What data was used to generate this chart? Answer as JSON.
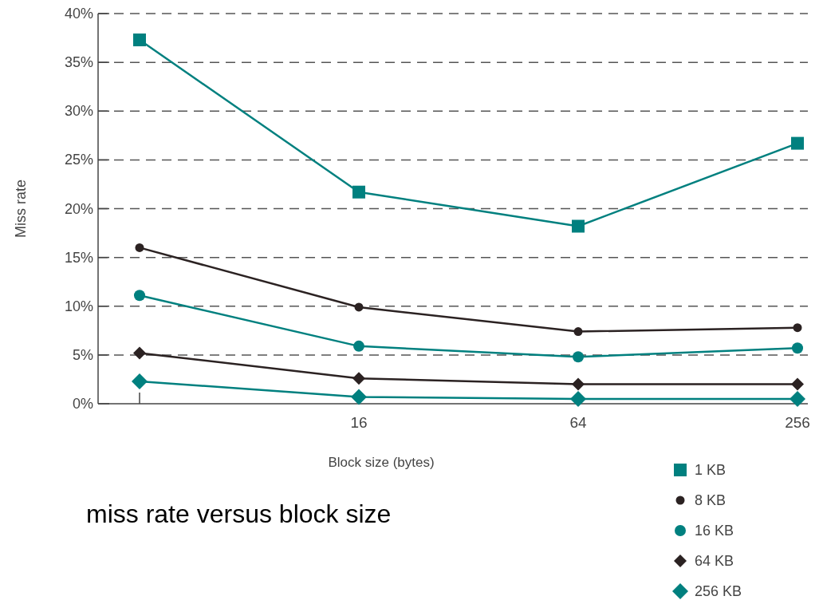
{
  "chart_data": {
    "type": "line",
    "title": "miss rate versus block size",
    "xlabel": "Block size (bytes)",
    "ylabel": "Miss rate",
    "categories": [
      null,
      "16",
      "64",
      "256"
    ],
    "series": [
      {
        "name": "1 KB",
        "color": "#00807f",
        "marker": "square",
        "values": [
          37.3,
          21.7,
          18.2,
          26.7
        ]
      },
      {
        "name": "8 KB",
        "color": "#2b2222",
        "marker": "circle",
        "values": [
          16.0,
          9.9,
          7.4,
          7.8
        ]
      },
      {
        "name": "16 KB",
        "color": "#00807f",
        "marker": "circle",
        "values": [
          11.1,
          5.9,
          4.8,
          5.7
        ]
      },
      {
        "name": "64 KB",
        "color": "#2b2222",
        "marker": "diamond",
        "values": [
          5.2,
          2.6,
          2.0,
          2.0
        ]
      },
      {
        "name": "256 KB",
        "color": "#00807f",
        "marker": "diamond",
        "values": [
          2.3,
          0.7,
          0.5,
          0.5
        ]
      }
    ],
    "ylim": [
      0,
      40
    ],
    "yticks": [
      {
        "value": 0,
        "label": "0%"
      },
      {
        "value": 5,
        "label": "5%"
      },
      {
        "value": 10,
        "label": "10%"
      },
      {
        "value": 15,
        "label": "15%"
      },
      {
        "value": 20,
        "label": "20%"
      },
      {
        "value": 25,
        "label": "25%"
      },
      {
        "value": 30,
        "label": "30%"
      },
      {
        "value": 35,
        "label": "35%"
      },
      {
        "value": 40,
        "label": "40%"
      }
    ],
    "grid": "y",
    "legend": "bottom right",
    "line_style": "solid"
  }
}
